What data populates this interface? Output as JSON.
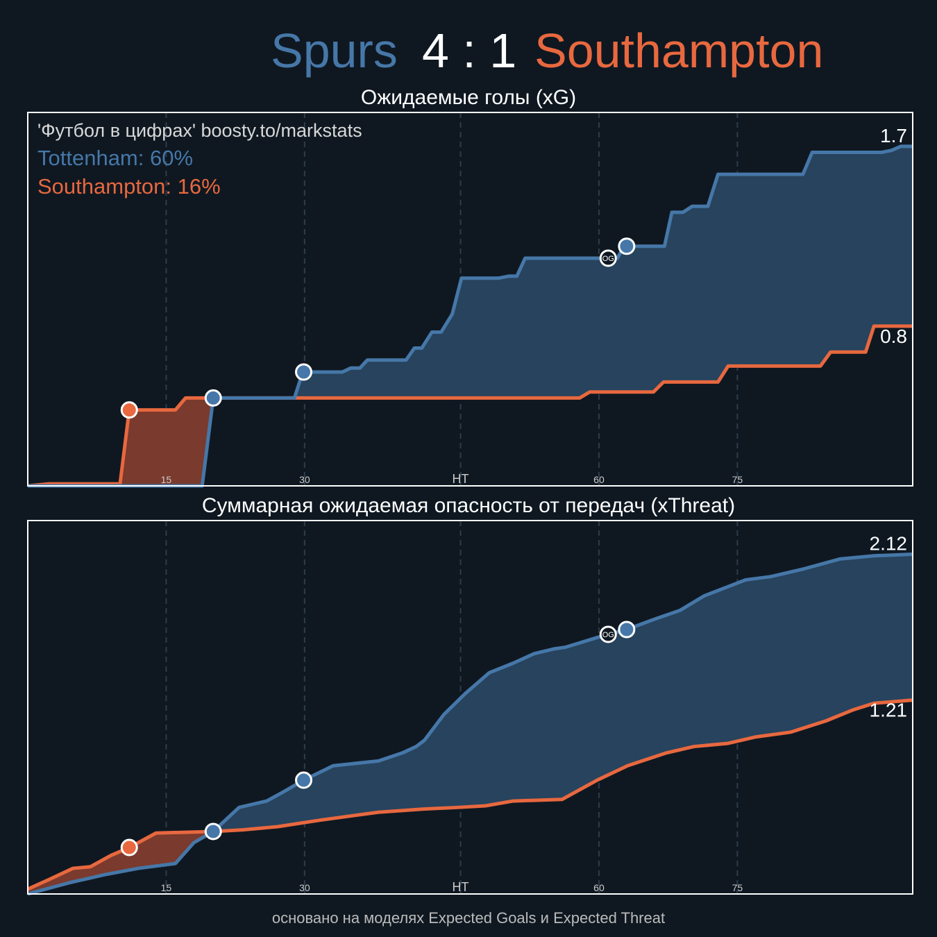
{
  "header": {
    "home": "Spurs",
    "score": "4 : 1",
    "away": "Southampton",
    "home_color": "#4677a8",
    "away_color": "#e8683f"
  },
  "chart_data": [
    {
      "type": "line",
      "title": "Ожидаемые голы (xG)",
      "annotations": [
        {
          "text": "'Футбол в цифрах' boosty.to/markstats",
          "color": "#d8d8d8"
        },
        {
          "text": "Tottenham: 60%",
          "color": "#4677a8"
        },
        {
          "text": "Southampton: 16%",
          "color": "#e8683f"
        }
      ],
      "xlim": [
        0,
        95.9
      ],
      "ylim": [
        0,
        1.87
      ],
      "xticks": [
        15,
        30,
        {
          "value": 46.9,
          "label": "HT"
        },
        {
          "value": 61.9,
          "label": "60"
        },
        {
          "value": 76.9,
          "label": "75"
        }
      ],
      "grid": true,
      "series": [
        {
          "color": "#4677a8",
          "fill": "#27435d",
          "total": 1.7,
          "x": [
            0,
            18.9,
            20.1,
            28.9,
            29.8,
            34.1,
            35,
            36,
            36.8,
            41,
            41.9,
            42.7,
            43.8,
            44.8,
            46,
            47,
            51,
            52.1,
            53,
            53.9,
            63.9,
            64.6,
            69,
            69.8,
            71,
            72,
            73.7,
            74.8,
            84,
            85,
            92.5,
            93.6,
            94.6,
            95.9
          ],
          "values": [
            0,
            0,
            0.44,
            0.44,
            0.57,
            0.57,
            0.59,
            0.59,
            0.63,
            0.63,
            0.69,
            0.69,
            0.77,
            0.77,
            0.86,
            1.04,
            1.04,
            1.05,
            1.05,
            1.14,
            1.14,
            1.2,
            1.2,
            1.37,
            1.37,
            1.4,
            1.4,
            1.56,
            1.56,
            1.67,
            1.67,
            1.68,
            1.7,
            1.7
          ],
          "goals": [
            {
              "x": 20.1,
              "value": 0.44
            },
            {
              "x": 29.9,
              "value": 0.57
            },
            {
              "x": 62.9,
              "value": 1.14,
              "label": "OG"
            },
            {
              "x": 64.9,
              "value": 1.2
            }
          ]
        },
        {
          "color": "#e8683f",
          "fill": "#7a3a2d",
          "total": 0.8,
          "x": [
            0,
            2.3,
            10,
            11,
            16,
            17.1,
            59.8,
            60.9,
            67.8,
            68.9,
            74.8,
            75.9,
            85.9,
            87,
            90.8,
            91.7,
            95.9
          ],
          "values": [
            0,
            0.01,
            0.01,
            0.38,
            0.38,
            0.44,
            0.44,
            0.47,
            0.47,
            0.52,
            0.52,
            0.6,
            0.6,
            0.67,
            0.67,
            0.8,
            0.8
          ],
          "goals": [
            {
              "x": 11,
              "value": 0.38
            }
          ]
        }
      ]
    },
    {
      "type": "line",
      "title": "Суммарная ожидаемая опасность от передач (xThreat)",
      "xlim": [
        0,
        95.9
      ],
      "ylim": [
        0,
        2.33
      ],
      "xticks": [
        15,
        30,
        {
          "value": 46.9,
          "label": "HT"
        },
        {
          "value": 61.9,
          "label": "60"
        },
        {
          "value": 76.9,
          "label": "75"
        }
      ],
      "grid": true,
      "series": [
        {
          "color": "#4677a8",
          "fill": "#27435d",
          "total": 2.12,
          "x": [
            0,
            4.5,
            8.3,
            12,
            16,
            18,
            20.1,
            22.9,
            25.9,
            27.8,
            29.9,
            33.1,
            38,
            40.6,
            42.1,
            43,
            45.1,
            47.4,
            50,
            52.6,
            54.9,
            57.1,
            58.3,
            61.7,
            62.9,
            64.9,
            67.7,
            70.7,
            73.3,
            77.8,
            80.5,
            84.2,
            88,
            91.7,
            95.9
          ],
          "values": [
            0,
            0.07,
            0.12,
            0.16,
            0.19,
            0.32,
            0.39,
            0.54,
            0.58,
            0.64,
            0.71,
            0.8,
            0.83,
            0.88,
            0.92,
            0.96,
            1.12,
            1.25,
            1.38,
            1.44,
            1.5,
            1.53,
            1.54,
            1.6,
            1.62,
            1.65,
            1.71,
            1.77,
            1.86,
            1.96,
            1.98,
            2.03,
            2.09,
            2.11,
            2.12
          ],
          "goals": [
            {
              "x": 20.1,
              "value": 0.39
            },
            {
              "x": 29.9,
              "value": 0.71
            },
            {
              "x": 62.9,
              "value": 1.62,
              "label": "OG"
            },
            {
              "x": 64.9,
              "value": 1.65
            }
          ]
        },
        {
          "color": "#e8683f",
          "fill": "#7a3a2d",
          "total": 1.21,
          "x": [
            0,
            2.3,
            4.9,
            6.8,
            9,
            11,
            13.9,
            20.1,
            23.3,
            27.1,
            31.6,
            38,
            42.9,
            46.6,
            49.6,
            52.6,
            57.9,
            61.7,
            65,
            69.2,
            72.2,
            75.9,
            78.9,
            82.7,
            86.5,
            89.5,
            91.7,
            95.9
          ],
          "values": [
            0.03,
            0.09,
            0.16,
            0.17,
            0.24,
            0.29,
            0.38,
            0.39,
            0.4,
            0.42,
            0.46,
            0.51,
            0.53,
            0.54,
            0.55,
            0.58,
            0.59,
            0.71,
            0.8,
            0.88,
            0.92,
            0.94,
            0.98,
            1.01,
            1.08,
            1.15,
            1.19,
            1.21
          ],
          "goals": [
            {
              "x": 11,
              "value": 0.29
            }
          ]
        }
      ]
    }
  ],
  "footer": "основано на моделях Expected Goals и Expected Threat"
}
